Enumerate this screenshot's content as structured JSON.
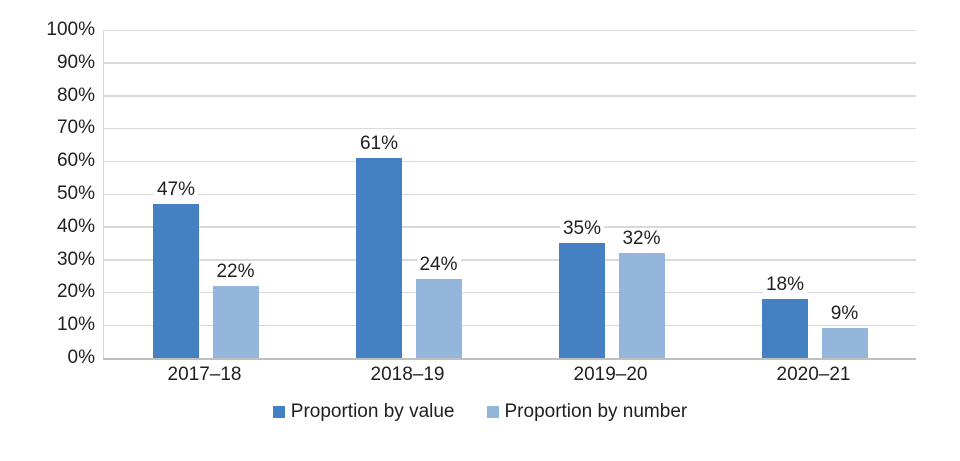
{
  "chart_data": {
    "type": "bar",
    "title": "",
    "xlabel": "",
    "ylabel": "",
    "categories": [
      "2017–18",
      "2018–19",
      "2019–20",
      "2020–21"
    ],
    "series": [
      {
        "name": "Proportion by value",
        "color": "#4480c2",
        "values": [
          47,
          61,
          35,
          18
        ],
        "labels": [
          "47%",
          "61%",
          "35%",
          "18%"
        ]
      },
      {
        "name": "Proportion by number",
        "color": "#94b5dc",
        "values": [
          22,
          24,
          32,
          9
        ],
        "labels": [
          "22%",
          "24%",
          "32%",
          "9%"
        ]
      }
    ],
    "ylim": [
      0,
      100
    ],
    "ytick_step": 10,
    "ytick_labels": [
      "0%",
      "10%",
      "20%",
      "30%",
      "40%",
      "50%",
      "60%",
      "70%",
      "80%",
      "90%",
      "100%"
    ],
    "grid": true,
    "legend_position": "bottom",
    "colors": {
      "gridline": "#d9d9d9",
      "axis_line": "#bfbfbf",
      "text": "#1f1f1f",
      "background": "#ffffff"
    }
  }
}
